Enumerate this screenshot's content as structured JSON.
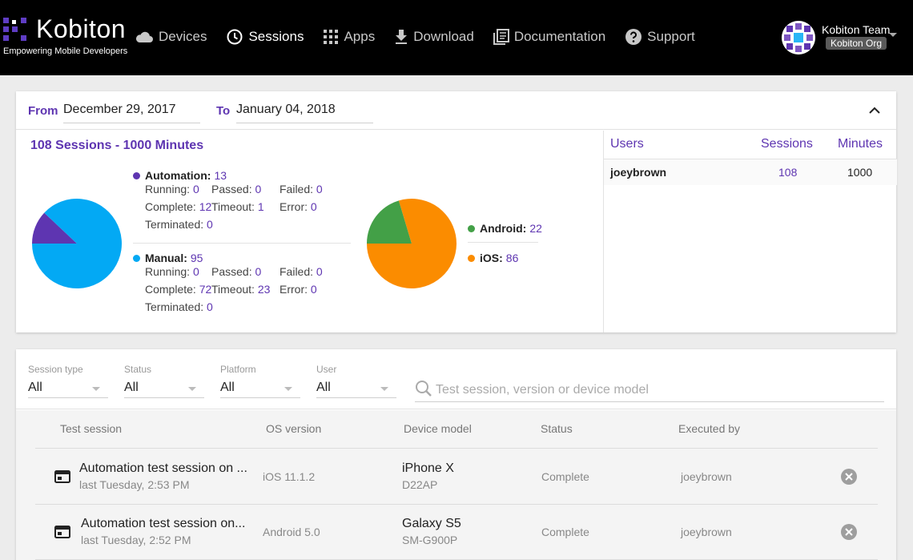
{
  "header": {
    "brand_name": "Kobiton",
    "brand_tagline": "Empowering Mobile Developers",
    "nav": [
      {
        "label": "Devices",
        "icon": "cloud-icon",
        "active": false
      },
      {
        "label": "Sessions",
        "icon": "clock-icon",
        "active": true
      },
      {
        "label": "Apps",
        "icon": "grid-icon",
        "active": false
      },
      {
        "label": "Download",
        "icon": "download-icon",
        "active": false
      },
      {
        "label": "Documentation",
        "icon": "documentation-icon",
        "active": false
      },
      {
        "label": "Support",
        "icon": "help-icon",
        "active": false
      }
    ],
    "user": {
      "name": "Kobiton Team",
      "org": "Kobiton Org"
    }
  },
  "summary": {
    "from_label": "From",
    "from_date": "December 29, 2017",
    "to_label": "To",
    "to_date": "January 04, 2018",
    "title": "108 Sessions - 1000 Minutes",
    "automation": {
      "label": "Automation:",
      "count": "13",
      "running_label": "Running:",
      "running": "0",
      "passed_label": "Passed:",
      "passed": "0",
      "failed_label": "Failed:",
      "failed": "0",
      "complete_label": "Complete:",
      "complete": "12",
      "timeout_label": "Timeout:",
      "timeout": "1",
      "error_label": "Error:",
      "error": "0",
      "terminated_label": "Terminated:",
      "terminated": "0"
    },
    "manual": {
      "label": "Manual:",
      "count": "95",
      "running_label": "Running:",
      "running": "0",
      "passed_label": "Passed:",
      "passed": "0",
      "failed_label": "Failed:",
      "failed": "0",
      "complete_label": "Complete:",
      "complete": "72",
      "timeout_label": "Timeout:",
      "timeout": "23",
      "error_label": "Error:",
      "error": "0",
      "terminated_label": "Terminated:",
      "terminated": "0"
    },
    "platform": {
      "android_label": "Android:",
      "android": "22",
      "ios_label": "iOS:",
      "ios": "86"
    },
    "colors": {
      "automation": "#5e35b1",
      "manual": "#03a9f4",
      "android": "#43a047",
      "ios": "#fb8c00",
      "accent": "#5e35b1"
    },
    "users_table": {
      "headers": [
        "Users",
        "Sessions",
        "Minutes"
      ],
      "rows": [
        {
          "user": "joeybrown",
          "sessions": "108",
          "minutes": "1000"
        }
      ]
    }
  },
  "sessions": {
    "filters": [
      {
        "label": "Session type",
        "value": "All"
      },
      {
        "label": "Status",
        "value": "All"
      },
      {
        "label": "Platform",
        "value": "All"
      },
      {
        "label": "User",
        "value": "All"
      }
    ],
    "search_placeholder": "Test session, version or device model",
    "headers": [
      "Test session",
      "OS version",
      "Device model",
      "Status",
      "Executed by"
    ],
    "rows": [
      {
        "name": "Automation test session on ...",
        "time": "last Tuesday, 2:53 PM",
        "os": "iOS 11.1.2",
        "device": "iPhone X",
        "device_code": "D22AP",
        "status": "Complete",
        "user": "joeybrown"
      },
      {
        "name": "Automation test session on...",
        "time": "last Tuesday, 2:52 PM",
        "os": "Android 5.0",
        "device": "Galaxy S5",
        "device_code": "SM-G900P",
        "status": "Complete",
        "user": "joeybrown"
      }
    ]
  }
}
